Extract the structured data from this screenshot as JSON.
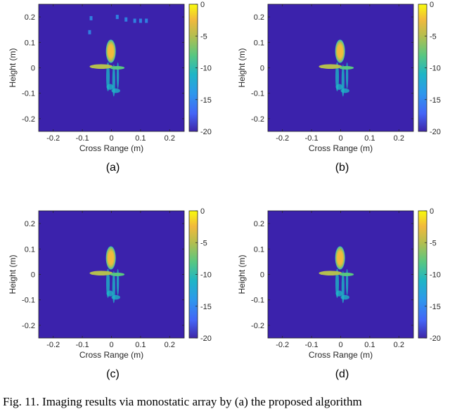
{
  "chart_data": [
    {
      "type": "heatmap",
      "label": "(a)",
      "xlabel": "Cross Range (m)",
      "ylabel": "Height (m)",
      "xlim": [
        -0.25,
        0.25
      ],
      "ylim": [
        -0.25,
        0.25
      ],
      "xticks": [
        -0.2,
        -0.1,
        0,
        0.1,
        0.2
      ],
      "yticks": [
        -0.2,
        -0.1,
        0,
        0.1,
        0.2
      ],
      "colorbar": {
        "min": -20,
        "max": 0,
        "ticks": [
          0,
          -5,
          -10,
          -15,
          -20
        ]
      },
      "clutter": true
    },
    {
      "type": "heatmap",
      "label": "(b)",
      "xlabel": "Cross Range (m)",
      "ylabel": "Height (m)",
      "xlim": [
        -0.25,
        0.25
      ],
      "ylim": [
        -0.25,
        0.25
      ],
      "xticks": [
        -0.2,
        -0.1,
        0,
        0.1,
        0.2
      ],
      "yticks": [
        -0.2,
        -0.1,
        0,
        0.1,
        0.2
      ],
      "colorbar": {
        "min": -20,
        "max": 0,
        "ticks": [
          0,
          -5,
          -10,
          -15,
          -20
        ]
      },
      "clutter": false
    },
    {
      "type": "heatmap",
      "label": "(c)",
      "xlabel": "Cross Range (m)",
      "ylabel": "Height (m)",
      "xlim": [
        -0.25,
        0.25
      ],
      "ylim": [
        -0.25,
        0.25
      ],
      "xticks": [
        -0.2,
        -0.1,
        0,
        0.1,
        0.2
      ],
      "yticks": [
        -0.2,
        -0.1,
        0,
        0.1,
        0.2
      ],
      "colorbar": {
        "min": -20,
        "max": 0,
        "ticks": [
          0,
          -5,
          -10,
          -15,
          -20
        ]
      },
      "clutter": false
    },
    {
      "type": "heatmap",
      "label": "(d)",
      "xlabel": "Cross Range (m)",
      "ylabel": "Height (m)",
      "xlim": [
        -0.25,
        0.25
      ],
      "ylim": [
        -0.25,
        0.25
      ],
      "xticks": [
        -0.2,
        -0.1,
        0,
        0.1,
        0.2
      ],
      "yticks": [
        -0.2,
        -0.1,
        0,
        0.1,
        0.2
      ],
      "colorbar": {
        "min": -20,
        "max": 0,
        "ticks": [
          0,
          -5,
          -10,
          -15,
          -20
        ]
      },
      "clutter": false
    }
  ],
  "caption": "Fig. 11.  Imaging results via monostatic array by (a) the proposed algorithm",
  "colors": {
    "background": "#3b22ac",
    "colormap": [
      "#3e26a8",
      "#4465f7",
      "#2d98ec",
      "#1eb5c6",
      "#59c780",
      "#b4be4f",
      "#f2b93c",
      "#f8fa0d"
    ]
  }
}
